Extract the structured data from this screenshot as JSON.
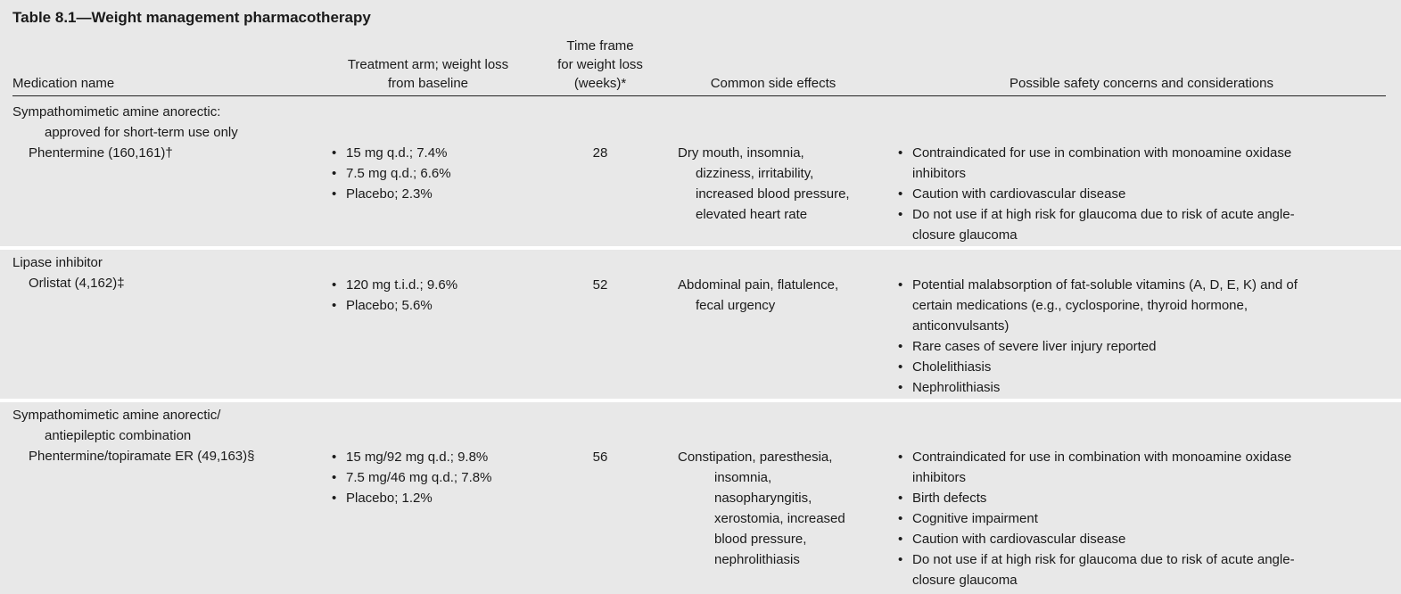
{
  "title": "Table 8.1—Weight management pharmacotherapy",
  "headers": {
    "medication": "Medication name",
    "treatment_line1": "Treatment arm; weight loss",
    "treatment_line2": "from baseline",
    "time_line1": "Time frame",
    "time_line2": "for weight loss",
    "time_line3": "(weeks)*",
    "side_effects": "Common side effects",
    "safety": "Possible safety concerns and considerations"
  },
  "rows": [
    {
      "category_line1": "Sympathomimetic amine anorectic:",
      "category_line2": "approved for short-term use only",
      "drug": "Phentermine (160,161)†",
      "arms": [
        "15 mg q.d.; 7.4%",
        "7.5 mg q.d.; 6.6%",
        "Placebo; 2.3%"
      ],
      "weeks": "28",
      "side_effects": [
        "Dry mouth, insomnia,",
        "dizziness, irritability,",
        "increased blood pressure,",
        "elevated heart rate"
      ],
      "safety": [
        [
          "Contraindicated for use in combination with monoamine oxidase",
          "inhibitors"
        ],
        [
          "Caution with cardiovascular disease"
        ],
        [
          "Do not use if at high risk for glaucoma due to risk of acute angle-",
          "closure glaucoma"
        ]
      ]
    },
    {
      "category_line1": "Lipase inhibitor",
      "drug": "Orlistat (4,162)‡",
      "arms": [
        "120 mg t.i.d.; 9.6%",
        "Placebo; 5.6%"
      ],
      "weeks": "52",
      "side_effects": [
        "Abdominal pain, flatulence,",
        "fecal urgency"
      ],
      "safety": [
        [
          "Potential malabsorption of fat-soluble vitamins (A, D, E, K) and of",
          "certain medications (e.g., cyclosporine, thyroid hormone,",
          "anticonvulsants)"
        ],
        [
          "Rare cases of severe liver injury reported"
        ],
        [
          "Cholelithiasis"
        ],
        [
          "Nephrolithiasis"
        ]
      ]
    },
    {
      "category_line1": "Sympathomimetic amine anorectic/",
      "category_line2": "antiepileptic combination",
      "drug": "Phentermine/topiramate ER (49,163)§",
      "arms": [
        "15 mg/92 mg q.d.; 9.8%",
        "7.5 mg/46 mg q.d.; 7.8%",
        "Placebo; 1.2%"
      ],
      "weeks": "56",
      "side_effects": [
        "Constipation, paresthesia,",
        "insomnia,",
        "nasopharyngitis,",
        "xerostomia, increased",
        "blood pressure,",
        "nephrolithiasis"
      ],
      "safety": [
        [
          "Contraindicated for use in combination with monoamine oxidase",
          "inhibitors"
        ],
        [
          "Birth defects"
        ],
        [
          "Cognitive impairment"
        ],
        [
          "Caution with cardiovascular disease"
        ],
        [
          "Do not use if at high risk for glaucoma due to risk of acute angle-",
          "closure glaucoma"
        ]
      ]
    }
  ]
}
